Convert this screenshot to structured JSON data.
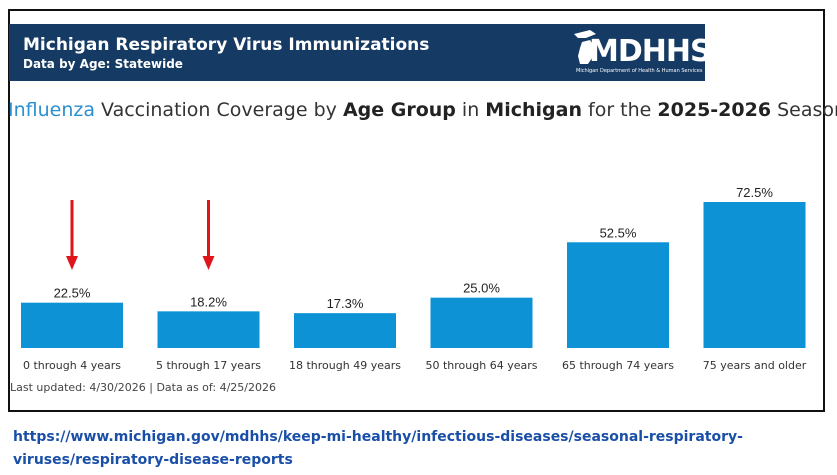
{
  "header": {
    "title": "Michigan Respiratory Virus Immunizations",
    "subtitle": "Data by Age: Statewide",
    "logo_text": "MDHHS",
    "logo_caption": "Michigan Department of Health & Human Services"
  },
  "chart_title": {
    "part1": "Influenza",
    "part2": " Vaccination Coverage by ",
    "part3": "Age Group",
    "part4": " in ",
    "part5": "Michigan",
    "part6": " for the ",
    "part7": "2025-2026",
    "part8": " Season"
  },
  "chart_data": {
    "type": "bar",
    "categories": [
      "0 through 4 years",
      "5 through 17 years",
      "18 through 49 years",
      "50 through 64 years",
      "65 through 74 years",
      "75 years and older"
    ],
    "values": [
      22.5,
      18.2,
      17.3,
      25.0,
      52.5,
      72.5
    ],
    "value_labels": [
      "22.5%",
      "18.2%",
      "17.3%",
      "25.0%",
      "52.5%",
      "72.5%"
    ],
    "ylim": [
      0,
      72.5
    ],
    "bar_color": "#0e92d6",
    "annotation_arrows_over": [
      "0 through 4 years",
      "5 through 17 years"
    ],
    "arrow_color": "#e0141b"
  },
  "footer": {
    "text": "Last updated: 4/30/2026 | Data as of: 4/25/2026"
  },
  "source_url": "https://www.michigan.gov/mdhhs/keep-mi-healthy/infectious-diseases/seasonal-respiratory-viruses/respiratory-disease-reports"
}
